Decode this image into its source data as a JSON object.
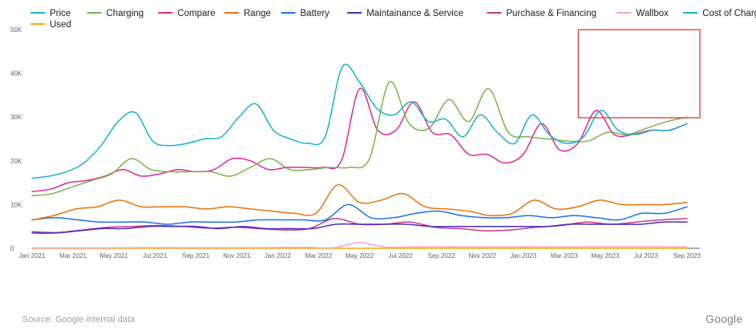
{
  "chart_data": {
    "type": "line",
    "title": "",
    "xlabel": "",
    "ylabel": "",
    "ylim": [
      0,
      50000
    ],
    "yticks": [
      {
        "value": 0,
        "label": "0"
      },
      {
        "value": 10000,
        "label": "10K"
      },
      {
        "value": 20000,
        "label": "20K"
      },
      {
        "value": 30000,
        "label": "30K"
      },
      {
        "value": 40000,
        "label": "40K"
      },
      {
        "value": 50000,
        "label": "50K"
      }
    ],
    "xticks": [
      "Jan 2021",
      "Mar 2021",
      "May 2021",
      "Jul 2021",
      "Sep 2021",
      "Nov 2021",
      "Jan 2022",
      "Mar 2022",
      "May 2022",
      "Jul 2022",
      "Sep 2022",
      "Nov 2022",
      "Jan 2023",
      "Mar 2023",
      "May 2023",
      "Jul 2023",
      "Sep 2023"
    ],
    "grid": false,
    "legend": "top-left",
    "series": [
      {
        "name": "Price",
        "color": "#12b5cb",
        "values": [
          16000,
          16500,
          17500,
          19500,
          23500,
          29000,
          31000,
          24500,
          23500,
          24000,
          25000,
          25500,
          30000,
          33000,
          27000,
          25000,
          24000,
          25500,
          41500,
          38000,
          32000,
          30500,
          33500,
          29000,
          29500,
          25500,
          30500,
          26500,
          24000,
          30500,
          26000,
          24000,
          25500,
          31500,
          27000,
          26000,
          27000,
          27000,
          28500
        ]
      },
      {
        "name": "Charging",
        "color": "#7cb342",
        "values": [
          12000,
          12500,
          14000,
          15500,
          17000,
          20500,
          18000,
          17500,
          17500,
          17500,
          16500,
          18500,
          20500,
          18000,
          18000,
          18500,
          18500,
          20500,
          38000,
          28500,
          27500,
          34000,
          29000,
          36500,
          26500,
          25500,
          25000,
          24500,
          24500,
          26500,
          26000,
          27500,
          29000,
          30000
        ]
      },
      {
        "name": "Compare",
        "color": "#e52592",
        "values": [
          13000,
          13500,
          15000,
          15500,
          16500,
          18000,
          16500,
          17000,
          18000,
          17500,
          18000,
          20500,
          20000,
          18000,
          18500,
          18500,
          18500,
          20000,
          36500,
          27000,
          27000,
          33500,
          26500,
          26000,
          21500,
          21500,
          19500,
          21500,
          28500,
          22500,
          24000,
          31500,
          26000,
          26000,
          27000,
          27000,
          28500
        ]
      },
      {
        "name": "Range",
        "color": "#e8710a",
        "values": [
          6500,
          7500,
          9000,
          9500,
          11000,
          9500,
          9500,
          9500,
          9000,
          9500,
          9000,
          8500,
          8000,
          8000,
          14500,
          10500,
          11000,
          12500,
          9500,
          9000,
          8500,
          7500,
          8000,
          11000,
          9000,
          9500,
          11000,
          10000,
          10000,
          10000,
          10500
        ]
      },
      {
        "name": "Battery",
        "color": "#1a73e8",
        "values": [
          6500,
          7000,
          6500,
          6000,
          6000,
          6000,
          5500,
          6000,
          6000,
          6000,
          6500,
          6500,
          6500,
          6500,
          10000,
          7000,
          7000,
          8000,
          8500,
          7500,
          7000,
          7000,
          7500,
          7000,
          7500,
          7000,
          6500,
          8000,
          8000,
          9500
        ]
      },
      {
        "name": "Maintainance & Service",
        "color": "#4e2bb6",
        "values": [
          3500,
          3500,
          4000,
          4500,
          4500,
          5000,
          5000,
          5000,
          4500,
          5000,
          4500,
          4500,
          4500,
          5500,
          5500,
          5500,
          5500,
          5000,
          5000,
          5000,
          5000,
          5000,
          5000,
          5500,
          5500,
          5500,
          5500,
          6000,
          6000
        ]
      },
      {
        "name": "Purchase & Financing",
        "color": "#c5398b",
        "values": [
          3800,
          3600,
          4200,
          4800,
          5000,
          5200,
          5000,
          4600,
          4800,
          4500,
          4200,
          4500,
          6800,
          5500,
          5500,
          6000,
          4800,
          4500,
          4000,
          4200,
          4800,
          5200,
          6000,
          5500,
          6000,
          6500,
          6800
        ]
      },
      {
        "name": "Wallbox",
        "color": "#f6a5c8",
        "values": [
          100,
          100,
          100,
          100,
          150,
          150,
          150,
          150,
          150,
          150,
          200,
          200,
          150,
          1300,
          300,
          300,
          350,
          300,
          300,
          300,
          350,
          300,
          350,
          350,
          350,
          350,
          300
        ]
      },
      {
        "name": "Cost of Charging",
        "color": "#12b5cb",
        "values": [
          null
        ]
      },
      {
        "name": "Used",
        "color": "#f9ab00",
        "values": [
          0,
          0,
          0,
          0,
          0,
          0,
          0,
          0,
          0,
          0,
          0,
          0,
          0,
          0,
          0,
          0,
          0,
          0,
          0,
          0,
          0,
          0,
          0,
          0,
          0,
          0,
          0
        ]
      }
    ],
    "highlight_box": {
      "from": "Apr 2023",
      "to": "Sep 2023",
      "color": "#ea4335"
    }
  },
  "footer": {
    "source": "Source: Google internal data",
    "logo": "Google"
  }
}
